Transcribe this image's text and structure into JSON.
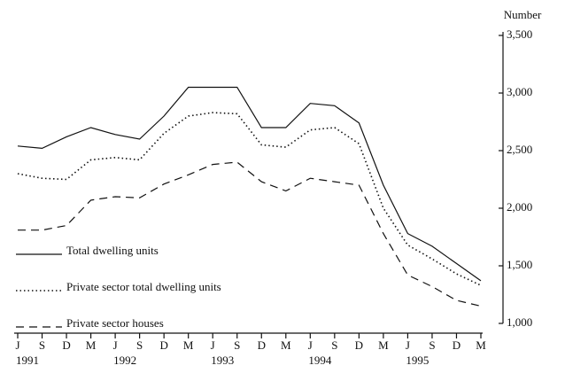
{
  "chart_data": {
    "type": "line",
    "y_axis_label": "Number",
    "categories": [
      "J",
      "S",
      "D",
      "M",
      "J",
      "S",
      "D",
      "M",
      "J",
      "S",
      "D",
      "M",
      "J",
      "S",
      "D",
      "M",
      "J",
      "S",
      "D",
      "M"
    ],
    "year_labels": [
      "1991",
      null,
      null,
      null,
      "1992",
      null,
      null,
      null,
      "1993",
      null,
      null,
      null,
      "1994",
      null,
      null,
      null,
      "1995",
      null,
      null,
      null
    ],
    "series": [
      {
        "name": "Total dwelling units",
        "color": "#111111",
        "dash": "solid",
        "values": [
          2540,
          2520,
          2620,
          2700,
          2640,
          2600,
          2800,
          3050,
          3050,
          3050,
          2700,
          2700,
          2910,
          2890,
          2740,
          2200,
          1780,
          1670,
          1520,
          1370
        ]
      },
      {
        "name": "Private sector total dwelling units",
        "color": "#111111",
        "dash": "dotted",
        "values": [
          2300,
          2260,
          2250,
          2420,
          2440,
          2420,
          2650,
          2800,
          2830,
          2820,
          2550,
          2530,
          2680,
          2700,
          2560,
          2000,
          1680,
          1560,
          1430,
          1330
        ]
      },
      {
        "name": "Private sector houses",
        "color": "#111111",
        "dash": "dashed",
        "values": [
          1810,
          1810,
          1850,
          2070,
          2100,
          2090,
          2210,
          2290,
          2380,
          2400,
          2230,
          2150,
          2260,
          2230,
          2200,
          1780,
          1420,
          1320,
          1200,
          1150
        ]
      }
    ],
    "ylim": [
      1000,
      3500
    ],
    "yticks": [
      {
        "value": 1000,
        "label": "1,000"
      },
      {
        "value": 1500,
        "label": "1,500"
      },
      {
        "value": 2000,
        "label": "2,000"
      },
      {
        "value": 2500,
        "label": "2,500"
      },
      {
        "value": 3000,
        "label": "3,000"
      },
      {
        "value": 3500,
        "label": "3,500"
      }
    ],
    "y_axis_side": "right"
  }
}
